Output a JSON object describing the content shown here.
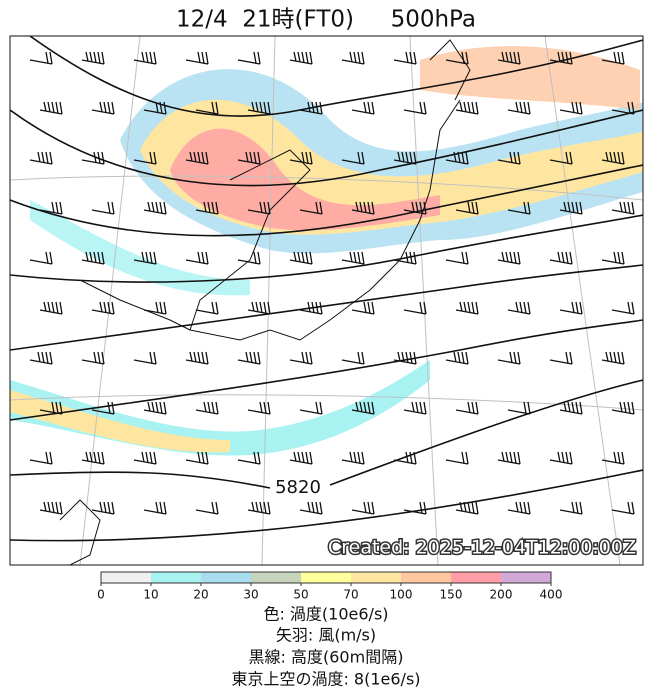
{
  "title": "12/4  21時(FT0)     500hPa",
  "map": {
    "contour_label": "5820",
    "created": "Created: 2025-12-04T12:00:00Z"
  },
  "colorbar": {
    "ticks": [
      0,
      10,
      20,
      30,
      50,
      70,
      100,
      150,
      200,
      400
    ],
    "colors": [
      "#f0f0f0",
      "#a8f2f2",
      "#a8dcf0",
      "#c6d4bc",
      "#ffff9c",
      "#ffe6a0",
      "#ffc6a0",
      "#ff9ea6",
      "#d2a8d8"
    ]
  },
  "caption": [
    "色: 渦度(10e6/s)",
    "矢羽: 風(m/s)",
    "黒線: 高度(60m間隔)",
    "東京上空の渦度: 8(1e6/s)"
  ]
}
